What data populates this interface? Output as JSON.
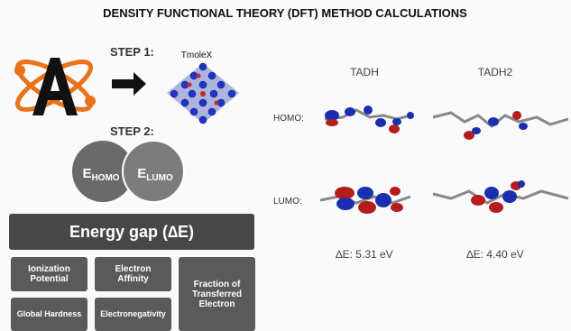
{
  "header": {
    "title": "DENSITY FUNCTIONAL THEORY (DFT) METHOD CALCULATIONS"
  },
  "steps": [
    {
      "label": "STEP 1:",
      "software": "TmoleX"
    },
    {
      "label": "STEP 2:",
      "orbitals": [
        {
          "symbol": "E",
          "sub": "HOMO"
        },
        {
          "symbol": "E",
          "sub": "LUMO"
        }
      ]
    }
  ],
  "properties": {
    "gap": "Energy gap (∆E)",
    "items": [
      "Ionization Potential",
      "Electron Affinity",
      "Fraction of Transferred Electron",
      "Global Hardness",
      "Electronegativity"
    ]
  },
  "orbital_rows": [
    "HOMO:",
    "LUMO:"
  ],
  "molecules": [
    {
      "name": "TADH",
      "gap": "∆E: 5.31 eV"
    },
    {
      "name": "TADH2",
      "gap": "∆E: 4.40 eV"
    }
  ]
}
